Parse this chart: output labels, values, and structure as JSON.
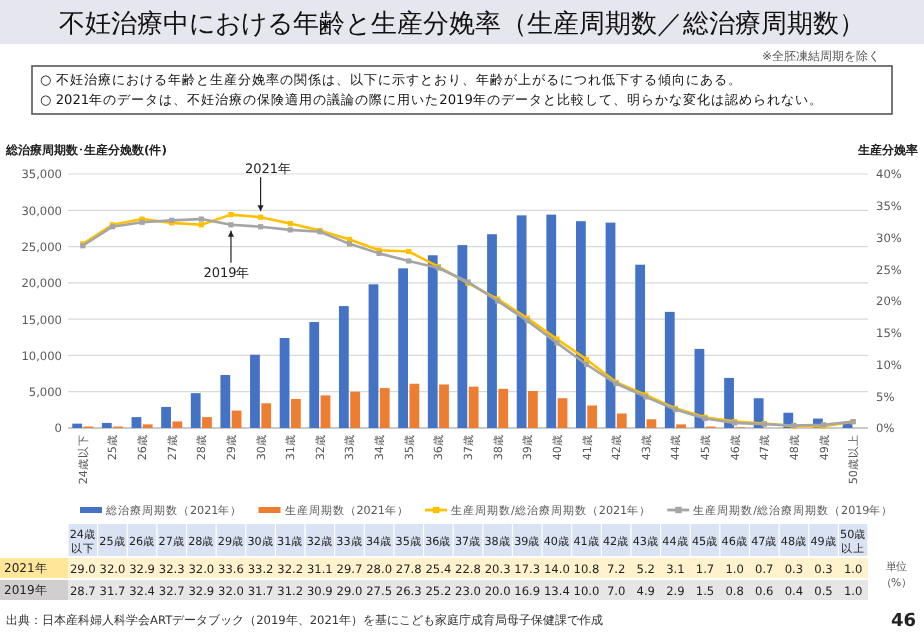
{
  "chart_data": {
    "type": "bar",
    "title": "不妊治療中における年齢と生産分娩率（生産周期数／総治療周期数）",
    "subtitle": "※全胚凍結周期を除く",
    "ylabel": "総治療周期数･生産分娩数(件)",
    "y2label": "生産分娩率",
    "categories": [
      "24歳以下",
      "25歳",
      "26歳",
      "27歳",
      "28歳",
      "29歳",
      "30歳",
      "31歳",
      "32歳",
      "33歳",
      "34歳",
      "35歳",
      "36歳",
      "37歳",
      "38歳",
      "39歳",
      "40歳",
      "41歳",
      "42歳",
      "43歳",
      "44歳",
      "45歳",
      "46歳",
      "47歳",
      "48歳",
      "49歳",
      "50歳以上"
    ],
    "series": [
      {
        "name": "総治療周期数（2021年）",
        "color": "#4472c4",
        "values": [
          600,
          700,
          1500,
          2900,
          4800,
          7300,
          10100,
          12400,
          14600,
          16800,
          19800,
          22000,
          23800,
          25200,
          26700,
          29300,
          29400,
          28500,
          28300,
          22500,
          16000,
          10900,
          6900,
          4100,
          2100,
          1300,
          700
        ]
      },
      {
        "name": "生産周期数（2021年）",
        "color": "#ed7d31",
        "values": [
          200,
          200,
          500,
          900,
          1500,
          2400,
          3400,
          4000,
          4500,
          5000,
          5500,
          6100,
          6000,
          5700,
          5400,
          5100,
          4100,
          3100,
          2000,
          1200,
          500,
          200,
          100,
          null,
          null,
          null,
          null
        ]
      },
      {
        "name": "生産周期数/総治療周期数（2021年）",
        "type": "line",
        "axis": "y2",
        "color": "#ffc000",
        "values": [
          29.0,
          32.0,
          32.9,
          32.3,
          32.0,
          33.6,
          33.2,
          32.2,
          31.1,
          29.7,
          28.0,
          27.8,
          25.4,
          22.8,
          20.3,
          17.3,
          14.0,
          10.8,
          7.2,
          5.2,
          3.1,
          1.7,
          1.0,
          0.7,
          0.3,
          0.3,
          1.0
        ],
        "value_labels": [
          "29.0",
          "32.0",
          "32.9",
          "32.3",
          "32.0",
          "33.6",
          "33.2",
          "32.2",
          "31.1",
          "29.7",
          "28.0",
          "27.8",
          "25.4",
          "22.8",
          "20.3",
          "17.3",
          "14.0",
          "10.8",
          "7.2",
          "5.2",
          "3.1",
          "1.7",
          "1.0",
          "0.7",
          "0.3",
          "0.3",
          "1.0"
        ]
      },
      {
        "name": "生産周期数/総治療周期数（2019年）",
        "type": "line",
        "axis": "y2",
        "color": "#a5a5a5",
        "values": [
          28.7,
          31.7,
          32.4,
          32.7,
          32.9,
          32.0,
          31.7,
          31.2,
          30.9,
          29.0,
          27.5,
          26.3,
          25.2,
          23.0,
          20.0,
          16.9,
          13.4,
          10.0,
          7.0,
          4.9,
          2.9,
          1.5,
          0.8,
          0.6,
          0.4,
          0.5,
          1.0
        ],
        "value_labels": [
          "28.7",
          "31.7",
          "32.4",
          "32.7",
          "32.9",
          "32.0",
          "31.7",
          "31.2",
          "30.9",
          "29.0",
          "27.5",
          "26.3",
          "25.2",
          "23.0",
          "20.0",
          "16.9",
          "13.4",
          "10.0",
          "7.0",
          "4.9",
          "2.9",
          "1.5",
          "0.8",
          "0.6",
          "0.4",
          "0.5",
          "1.0"
        ]
      }
    ],
    "ylim": [
      0,
      35000
    ],
    "yticks": [
      0,
      {
        "value": 5000,
        "label": "5,000"
      },
      {
        "value": 10000,
        "label": "10,000"
      },
      {
        "value": 15000,
        "label": "15,000"
      },
      {
        "value": 20000,
        "label": "20,000"
      },
      {
        "value": 25000,
        "label": "25,000"
      },
      {
        "value": 30000,
        "label": "30,000"
      },
      {
        "value": 35000,
        "label": "35,000"
      }
    ],
    "y2lim": [
      0,
      40
    ],
    "y2ticks": [
      {
        "value": 0,
        "label": "0%"
      },
      {
        "value": 5,
        "label": "5%"
      },
      {
        "value": 10,
        "label": "10%"
      },
      {
        "value": 15,
        "label": "15%"
      },
      {
        "value": 20,
        "label": "20%"
      },
      {
        "value": 25,
        "label": "25%"
      },
      {
        "value": 30,
        "label": "30%"
      },
      {
        "value": 35,
        "label": "35%"
      },
      {
        "value": 40,
        "label": "40%"
      }
    ],
    "grid": "y",
    "legend": "bottom",
    "marker": "square",
    "annotations": [
      "○ 不妊治療における年齢と生産分娩率の関係は、以下に示すとおり、年齢が上がるにつれ低下する傾向にある。",
      "○ 2021年のデータは、不妊治療の保険適用の議論の際に用いた2019年のデータと比較して、明らかな変化は認められない。",
      "2021年",
      "2019年",
      "2021年",
      "2019年",
      "単位（%）",
      "出典：日本産科婦人科学会ARTデータブック（2019年、2021年）を基にこども家庭庁成育局母子保健課で作成",
      "46",
      "24歳以下",
      "25歳",
      "26歳",
      "27歳",
      "28歳",
      "29歳",
      "30歳",
      "31歳",
      "32歳",
      "33歳",
      "34歳",
      "35歳",
      "36歳",
      "37歳",
      "38歳",
      "39歳",
      "40歳",
      "41歳",
      "42歳",
      "43歳",
      "44歳",
      "45歳",
      "46歳",
      "47歳",
      "48歳",
      "49歳",
      "50歳以上"
    ]
  }
}
